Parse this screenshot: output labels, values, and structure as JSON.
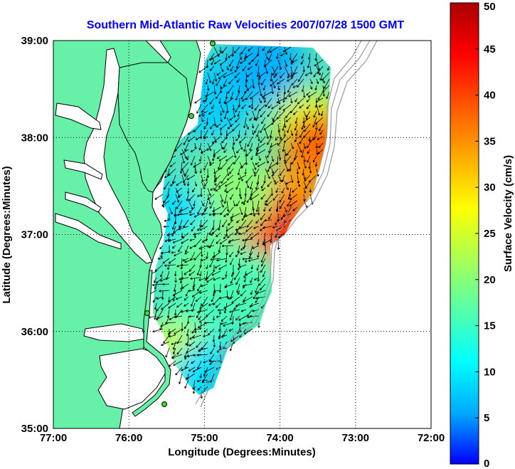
{
  "chart_data": [
    {
      "type": "heatmap",
      "title": "Southern Mid-Atlantic Raw Velocities 2007/07/28 1500 GMT",
      "xlabel": "Longitude (Degrees:Minutes)",
      "ylabel": "Latitude (Degrees:Minutes)",
      "x_ticks": [
        "77:00",
        "76:00",
        "75:00",
        "74:00",
        "73:00",
        "72:00"
      ],
      "y_ticks": [
        "39:00",
        "38:00",
        "37:00",
        "36:00",
        "35:00"
      ],
      "xlim": [
        -77,
        -72
      ],
      "ylim": [
        35,
        39
      ],
      "grid": true,
      "velocity_regions": [
        {
          "lon": -74.9,
          "lat": 38.4,
          "speed": 8
        },
        {
          "lon": -74.2,
          "lat": 38.75,
          "speed": 6
        },
        {
          "lon": -73.6,
          "lat": 38.1,
          "speed": 25
        },
        {
          "lon": -73.45,
          "lat": 37.85,
          "speed": 38
        },
        {
          "lon": -73.75,
          "lat": 37.35,
          "speed": 34
        },
        {
          "lon": -74.1,
          "lat": 37.05,
          "speed": 42
        },
        {
          "lon": -74.6,
          "lat": 37.45,
          "speed": 20
        },
        {
          "lon": -75.4,
          "lat": 37.1,
          "speed": 9
        },
        {
          "lon": -75.0,
          "lat": 36.7,
          "speed": 18
        },
        {
          "lon": -74.5,
          "lat": 36.5,
          "speed": 16
        },
        {
          "lon": -75.2,
          "lat": 36.0,
          "speed": 15
        },
        {
          "lon": -75.4,
          "lat": 35.7,
          "speed": 24
        },
        {
          "lon": -74.95,
          "lat": 35.5,
          "speed": 9
        }
      ]
    },
    {
      "type": "colorbar",
      "label": "Surface Velocity (cm/s)",
      "ticks": [
        "0",
        "5",
        "10",
        "15",
        "20",
        "25",
        "30",
        "35",
        "40",
        "45",
        "50"
      ],
      "range": [
        0,
        50
      ],
      "colormap": [
        "#0000ff",
        "#00aaff",
        "#00ffff",
        "#55ffaa",
        "#aaff55",
        "#ffff00",
        "#ffaa00",
        "#ff5500",
        "#ff0000",
        "#aa0000"
      ]
    }
  ],
  "colors": {
    "land": "#66f0a8",
    "ocean": "#ffffff",
    "coast": "#000000",
    "bathymetry": "#9a9a9a",
    "station": "#33dd33",
    "title": "#0000ff"
  }
}
